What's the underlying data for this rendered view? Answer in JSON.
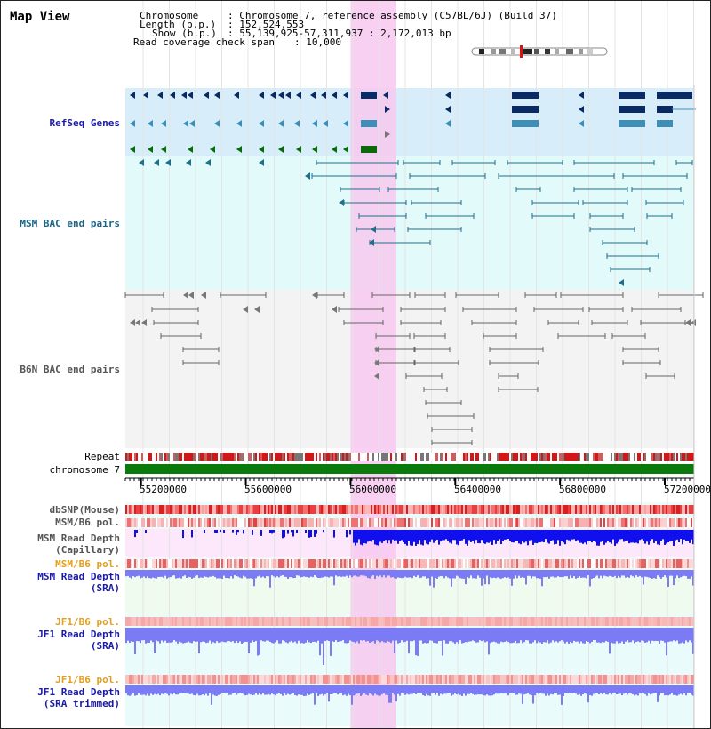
{
  "title": "Map View",
  "info": {
    "chromosome_key": "Chromosome",
    "chromosome_val": ": Chromosome 7, reference assembly (C57BL/6J) (Build 37)",
    "length_key": "Length (b.p.)",
    "length_val": ": 152,524,553",
    "show_key": "Show (b.p.)",
    "show_val": ": 55,139,925-57,311,937 : 2,172,013 bp",
    "read_cov_key": "Read coverage check span",
    "read_cov_val": ": 10,000"
  },
  "tracks": {
    "refseq": "RefSeq Genes",
    "msm_bac": "MSM BAC end pairs",
    "b6n_bac": "B6N BAC end pairs",
    "repeat": "Repeat",
    "chromosome": "chromosome 7",
    "dbsnp": "dbSNP(Mouse)",
    "msm_b6_pol_1": "MSM/B6 pol.",
    "msm_read_depth_cap_1": "MSM Read Depth",
    "msm_read_depth_cap_2": "(Capillary)",
    "msm_b6_pol_2": "MSM/B6 pol.",
    "msm_read_depth_sra_1": "MSM Read Depth",
    "msm_read_depth_sra_2": "(SRA)",
    "jf1_b6_pol_1": "JF1/B6 pol.",
    "jf1_read_depth_sra_1": "JF1 Read Depth",
    "jf1_read_depth_sra_2": "(SRA)",
    "jf1_b6_pol_2": "JF1/B6 pol.",
    "jf1_read_depth_trim_1": "JF1 Read Depth",
    "jf1_read_depth_trim_2": "(SRA trimmed)"
  },
  "axis": {
    "tick_values": [
      55200000,
      55600000,
      56000000,
      56400000,
      56800000,
      57200000
    ],
    "tick_labels": [
      "55200000",
      "55600000",
      "56000000",
      "56400000",
      "56800000",
      "57200000"
    ],
    "start_bp": 55139925,
    "end_bp": 57311937,
    "highlight_bp": [
      56000000,
      56175000
    ]
  },
  "colors": {
    "refseq_bg": "#d7eefa",
    "msm_bg": "#e2fafa",
    "b6n_bg": "#f3f3f3",
    "highlight": "#f7c8ee",
    "refseq_label": "#1a1aaa",
    "msm_label": "#1a6688",
    "b6n_label": "#555555",
    "msm_pair": "#1f6f8b",
    "b6n_pair": "#555555",
    "chrom_bar": "#0a7a0a",
    "depth_blue": "#1010ee",
    "depth_light": "#7b7bf5",
    "pol_label": "#e0a020",
    "depth_label": "#1a1aaa",
    "gene_dark": "#0a2a66",
    "gene_mid": "#3d8fb8",
    "gene_green": "#0a6a0a"
  }
}
